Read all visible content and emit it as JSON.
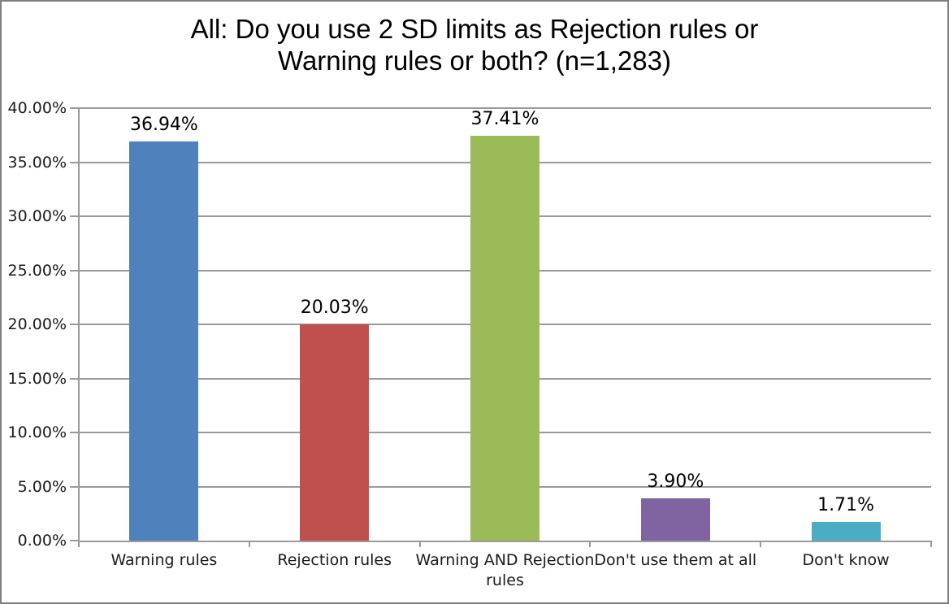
{
  "title": {
    "line1": "All: Do you use 2 SD limits as Rejection rules or",
    "line2": "Warning rules or both? (n=1,283)"
  },
  "chart_data": {
    "type": "bar",
    "title": "All: Do you use 2 SD limits as Rejection rules or Warning rules or both? (n=1,283)",
    "categories": [
      "Warning rules",
      "Rejection rules",
      "Warning AND Rejection rules",
      "Don't use them at all",
      "Don't know"
    ],
    "category_label_lines": [
      [
        "Warning rules"
      ],
      [
        "Rejection rules"
      ],
      [
        "Warning AND Rejection",
        "rules"
      ],
      [
        "Don't use them at all"
      ],
      [
        "Don't know"
      ]
    ],
    "values": [
      36.94,
      20.03,
      37.41,
      3.9,
      1.71
    ],
    "data_labels": [
      "36.94%",
      "20.03%",
      "37.41%",
      "3.90%",
      "1.71%"
    ],
    "bar_colors": [
      "#4F81BD",
      "#C0504D",
      "#9BBB59",
      "#8064A2",
      "#4BACC6"
    ],
    "xlabel": "",
    "ylabel": "",
    "ylim": [
      0,
      40
    ],
    "ytick_step": 5,
    "ytick_labels": [
      "0.00%",
      "5.00%",
      "10.00%",
      "15.00%",
      "20.00%",
      "25.00%",
      "30.00%",
      "35.00%",
      "40.00%"
    ],
    "grid": true,
    "legend": "none",
    "gridline_color": "#9a9a9a",
    "axis_color": "#9a9a9a",
    "frame_color": "#7f7f7f",
    "text_color": "#000000"
  }
}
